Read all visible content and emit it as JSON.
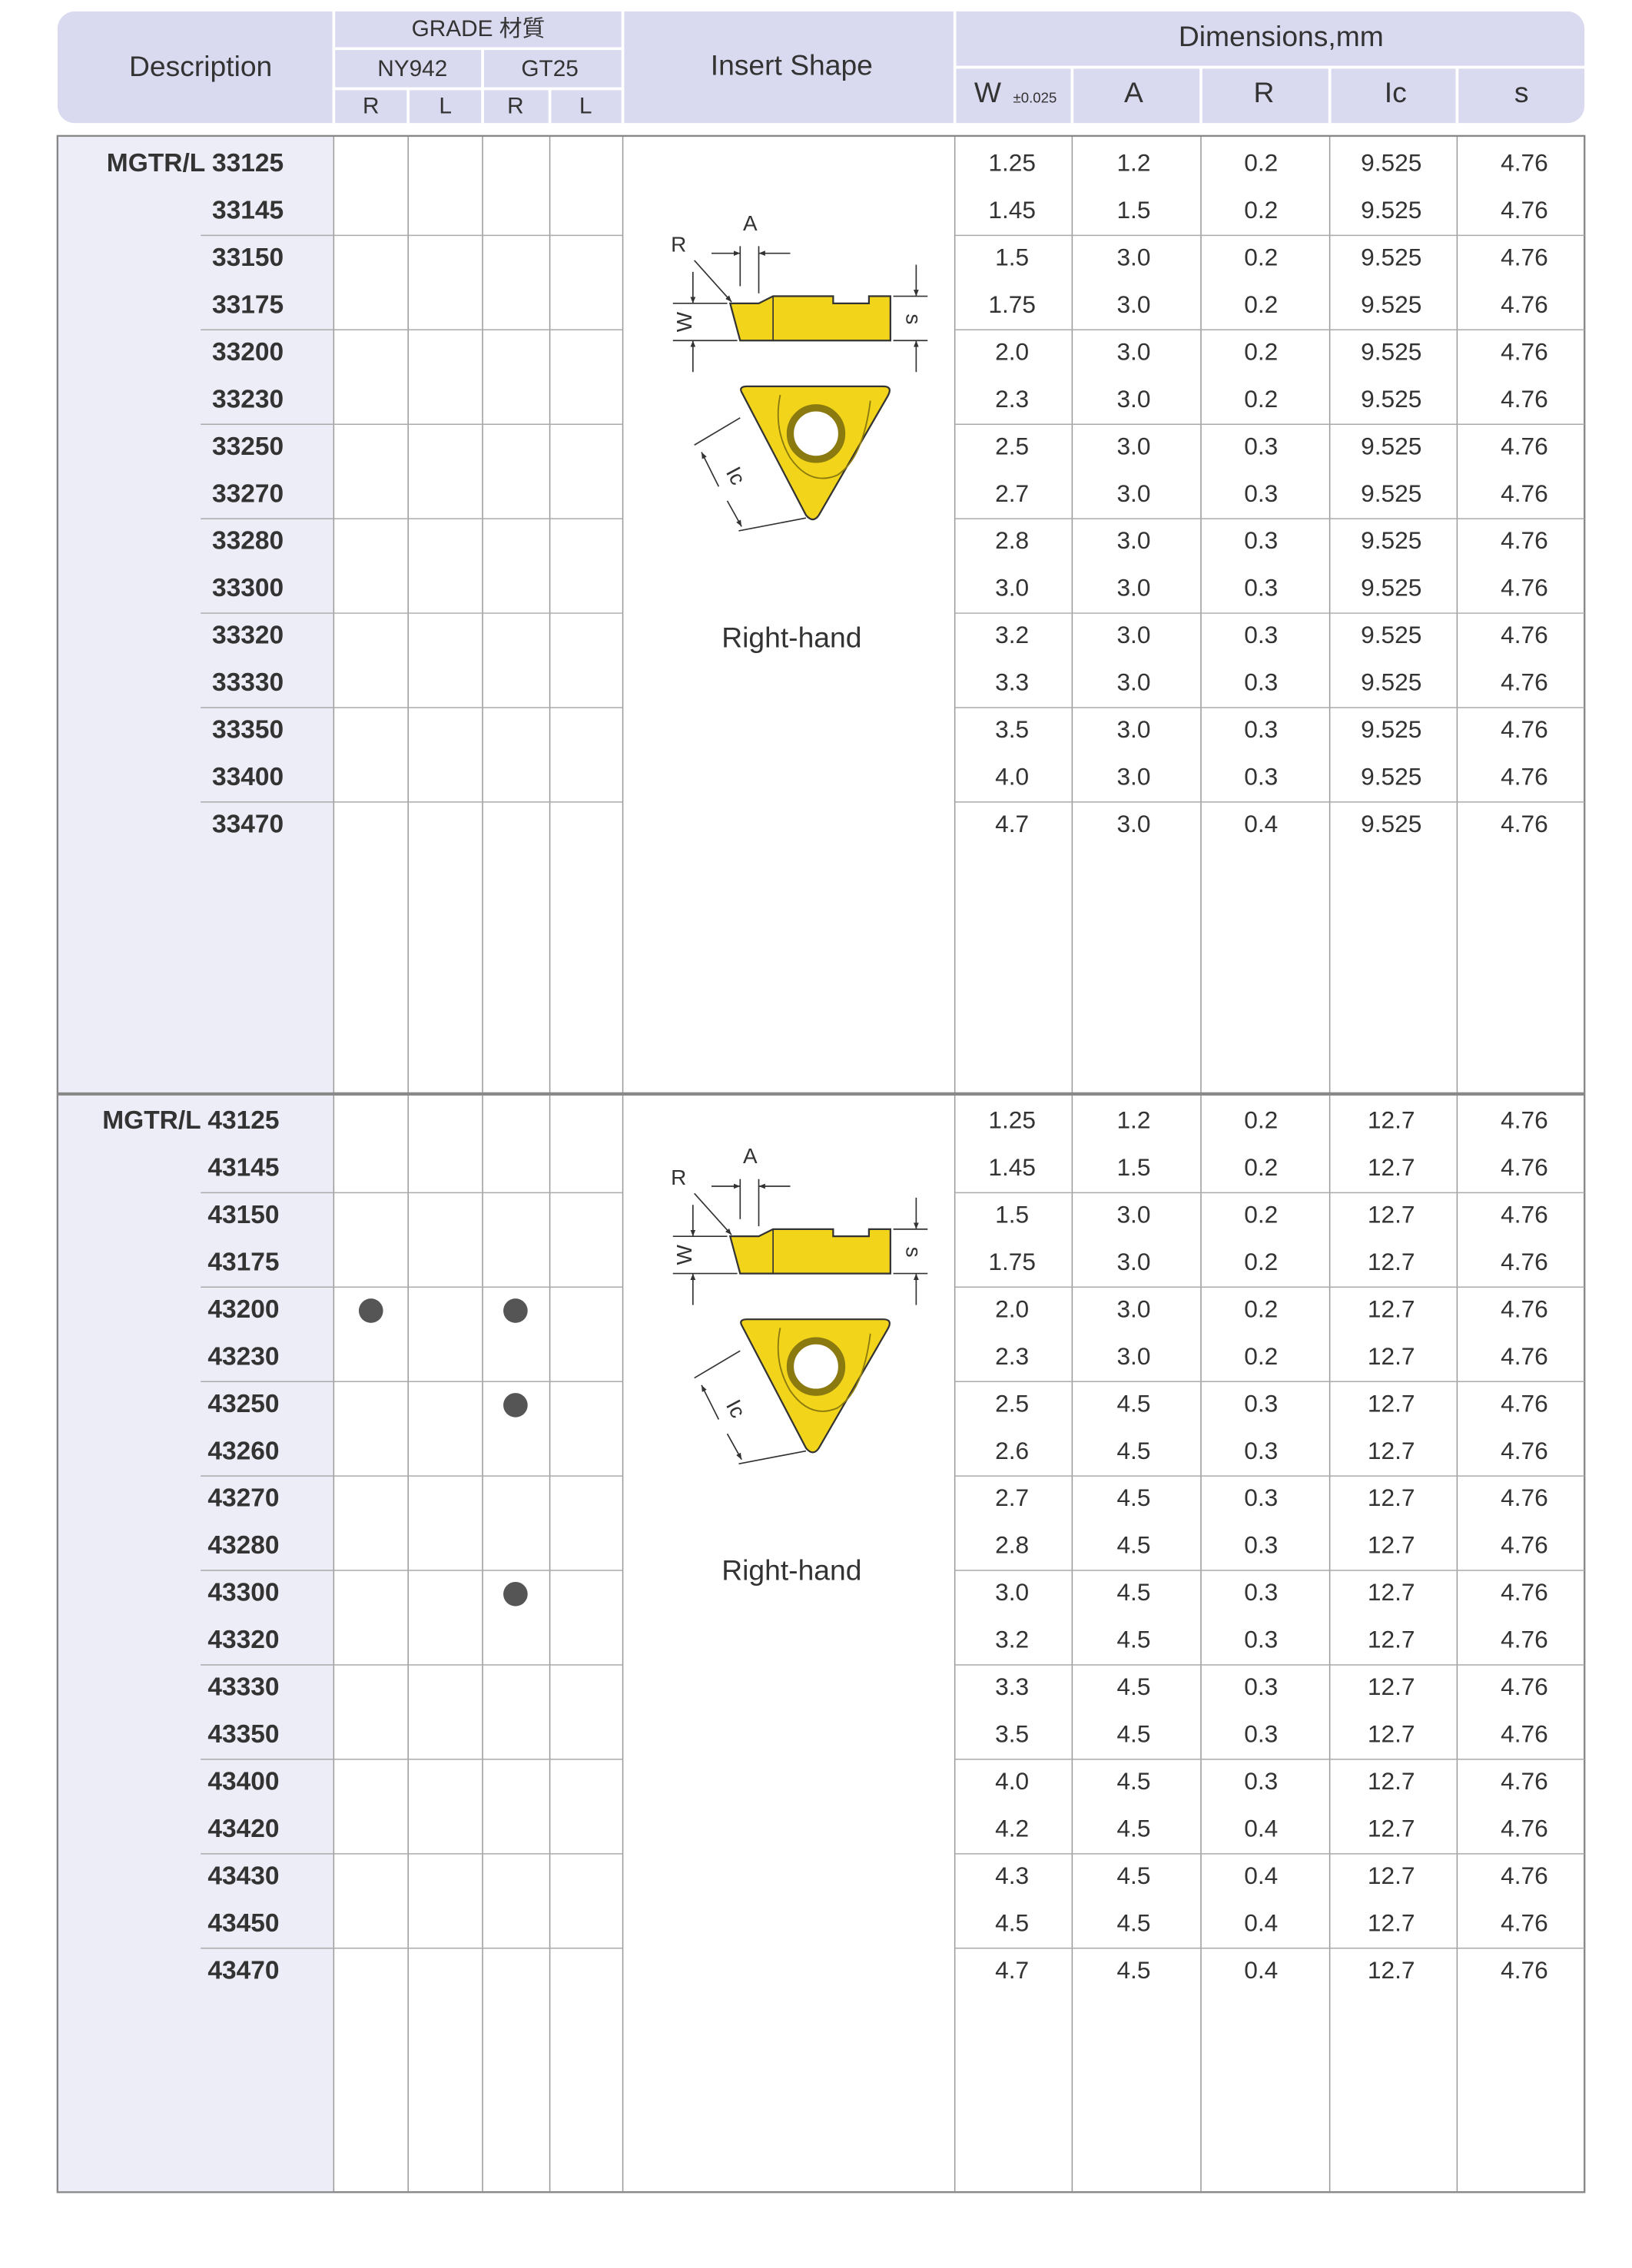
{
  "header": {
    "description": "Description",
    "grade": "GRADE 材質",
    "grades": [
      "NY942",
      "GT25"
    ],
    "hands": [
      "R",
      "L",
      "R",
      "L"
    ],
    "insert_shape": "Insert Shape",
    "dimensions": "Dimensions,mm",
    "dim_columns": [
      "W",
      "A",
      "R",
      "Ic",
      "s"
    ],
    "w_tolerance": "±0.025"
  },
  "sections": [
    {
      "diagram": [
        "R",
        "A",
        "W",
        "s",
        "Ic"
      ],
      "hand": "Right-hand",
      "rows": [
        {
          "code": "MGTR/L 33125",
          "marks": [
            false,
            false,
            false,
            false
          ],
          "dims": [
            "1.25",
            "1.2",
            "0.2",
            "9.525",
            "4.76"
          ]
        },
        {
          "code": "33145",
          "marks": [
            false,
            false,
            false,
            false
          ],
          "dims": [
            "1.45",
            "1.5",
            "0.2",
            "9.525",
            "4.76"
          ]
        },
        {
          "code": "33150",
          "marks": [
            false,
            false,
            false,
            false
          ],
          "dims": [
            "1.5",
            "3.0",
            "0.2",
            "9.525",
            "4.76"
          ]
        },
        {
          "code": "33175",
          "marks": [
            false,
            false,
            false,
            false
          ],
          "dims": [
            "1.75",
            "3.0",
            "0.2",
            "9.525",
            "4.76"
          ]
        },
        {
          "code": "33200",
          "marks": [
            false,
            false,
            false,
            false
          ],
          "dims": [
            "2.0",
            "3.0",
            "0.2",
            "9.525",
            "4.76"
          ]
        },
        {
          "code": "33230",
          "marks": [
            false,
            false,
            false,
            false
          ],
          "dims": [
            "2.3",
            "3.0",
            "0.2",
            "9.525",
            "4.76"
          ]
        },
        {
          "code": "33250",
          "marks": [
            false,
            false,
            false,
            false
          ],
          "dims": [
            "2.5",
            "3.0",
            "0.3",
            "9.525",
            "4.76"
          ]
        },
        {
          "code": "33270",
          "marks": [
            false,
            false,
            false,
            false
          ],
          "dims": [
            "2.7",
            "3.0",
            "0.3",
            "9.525",
            "4.76"
          ]
        },
        {
          "code": "33280",
          "marks": [
            false,
            false,
            false,
            false
          ],
          "dims": [
            "2.8",
            "3.0",
            "0.3",
            "9.525",
            "4.76"
          ]
        },
        {
          "code": "33300",
          "marks": [
            false,
            false,
            false,
            false
          ],
          "dims": [
            "3.0",
            "3.0",
            "0.3",
            "9.525",
            "4.76"
          ]
        },
        {
          "code": "33320",
          "marks": [
            false,
            false,
            false,
            false
          ],
          "dims": [
            "3.2",
            "3.0",
            "0.3",
            "9.525",
            "4.76"
          ]
        },
        {
          "code": "33330",
          "marks": [
            false,
            false,
            false,
            false
          ],
          "dims": [
            "3.3",
            "3.0",
            "0.3",
            "9.525",
            "4.76"
          ]
        },
        {
          "code": "33350",
          "marks": [
            false,
            false,
            false,
            false
          ],
          "dims": [
            "3.5",
            "3.0",
            "0.3",
            "9.525",
            "4.76"
          ]
        },
        {
          "code": "33400",
          "marks": [
            false,
            false,
            false,
            false
          ],
          "dims": [
            "4.0",
            "3.0",
            "0.3",
            "9.525",
            "4.76"
          ]
        },
        {
          "code": "33470",
          "marks": [
            false,
            false,
            false,
            false
          ],
          "dims": [
            "4.7",
            "3.0",
            "0.4",
            "9.525",
            "4.76"
          ]
        }
      ]
    },
    {
      "diagram": [
        "R",
        "A",
        "W",
        "s",
        "Ic"
      ],
      "hand": "Right-hand",
      "rows": [
        {
          "code": "MGTR/L 43125",
          "marks": [
            false,
            false,
            false,
            false
          ],
          "dims": [
            "1.25",
            "1.2",
            "0.2",
            "12.7",
            "4.76"
          ]
        },
        {
          "code": "43145",
          "marks": [
            false,
            false,
            false,
            false
          ],
          "dims": [
            "1.45",
            "1.5",
            "0.2",
            "12.7",
            "4.76"
          ]
        },
        {
          "code": "43150",
          "marks": [
            false,
            false,
            false,
            false
          ],
          "dims": [
            "1.5",
            "3.0",
            "0.2",
            "12.7",
            "4.76"
          ]
        },
        {
          "code": "43175",
          "marks": [
            false,
            false,
            false,
            false
          ],
          "dims": [
            "1.75",
            "3.0",
            "0.2",
            "12.7",
            "4.76"
          ]
        },
        {
          "code": "43200",
          "marks": [
            true,
            false,
            true,
            false
          ],
          "dims": [
            "2.0",
            "3.0",
            "0.2",
            "12.7",
            "4.76"
          ]
        },
        {
          "code": "43230",
          "marks": [
            false,
            false,
            false,
            false
          ],
          "dims": [
            "2.3",
            "3.0",
            "0.2",
            "12.7",
            "4.76"
          ]
        },
        {
          "code": "43250",
          "marks": [
            false,
            false,
            true,
            false
          ],
          "dims": [
            "2.5",
            "4.5",
            "0.3",
            "12.7",
            "4.76"
          ]
        },
        {
          "code": "43260",
          "marks": [
            false,
            false,
            false,
            false
          ],
          "dims": [
            "2.6",
            "4.5",
            "0.3",
            "12.7",
            "4.76"
          ]
        },
        {
          "code": "43270",
          "marks": [
            false,
            false,
            false,
            false
          ],
          "dims": [
            "2.7",
            "4.5",
            "0.3",
            "12.7",
            "4.76"
          ]
        },
        {
          "code": "43280",
          "marks": [
            false,
            false,
            false,
            false
          ],
          "dims": [
            "2.8",
            "4.5",
            "0.3",
            "12.7",
            "4.76"
          ]
        },
        {
          "code": "43300",
          "marks": [
            false,
            false,
            true,
            false
          ],
          "dims": [
            "3.0",
            "4.5",
            "0.3",
            "12.7",
            "4.76"
          ]
        },
        {
          "code": "43320",
          "marks": [
            false,
            false,
            false,
            false
          ],
          "dims": [
            "3.2",
            "4.5",
            "0.3",
            "12.7",
            "4.76"
          ]
        },
        {
          "code": "43330",
          "marks": [
            false,
            false,
            false,
            false
          ],
          "dims": [
            "3.3",
            "4.5",
            "0.3",
            "12.7",
            "4.76"
          ]
        },
        {
          "code": "43350",
          "marks": [
            false,
            false,
            false,
            false
          ],
          "dims": [
            "3.5",
            "4.5",
            "0.3",
            "12.7",
            "4.76"
          ]
        },
        {
          "code": "43400",
          "marks": [
            false,
            false,
            false,
            false
          ],
          "dims": [
            "4.0",
            "4.5",
            "0.3",
            "12.7",
            "4.76"
          ]
        },
        {
          "code": "43420",
          "marks": [
            false,
            false,
            false,
            false
          ],
          "dims": [
            "4.2",
            "4.5",
            "0.4",
            "12.7",
            "4.76"
          ]
        },
        {
          "code": "43430",
          "marks": [
            false,
            false,
            false,
            false
          ],
          "dims": [
            "4.3",
            "4.5",
            "0.4",
            "12.7",
            "4.76"
          ]
        },
        {
          "code": "43450",
          "marks": [
            false,
            false,
            false,
            false
          ],
          "dims": [
            "4.5",
            "4.5",
            "0.4",
            "12.7",
            "4.76"
          ]
        },
        {
          "code": "43470",
          "marks": [
            false,
            false,
            false,
            false
          ],
          "dims": [
            "4.7",
            "4.5",
            "0.4",
            "12.7",
            "4.76"
          ]
        }
      ]
    }
  ]
}
